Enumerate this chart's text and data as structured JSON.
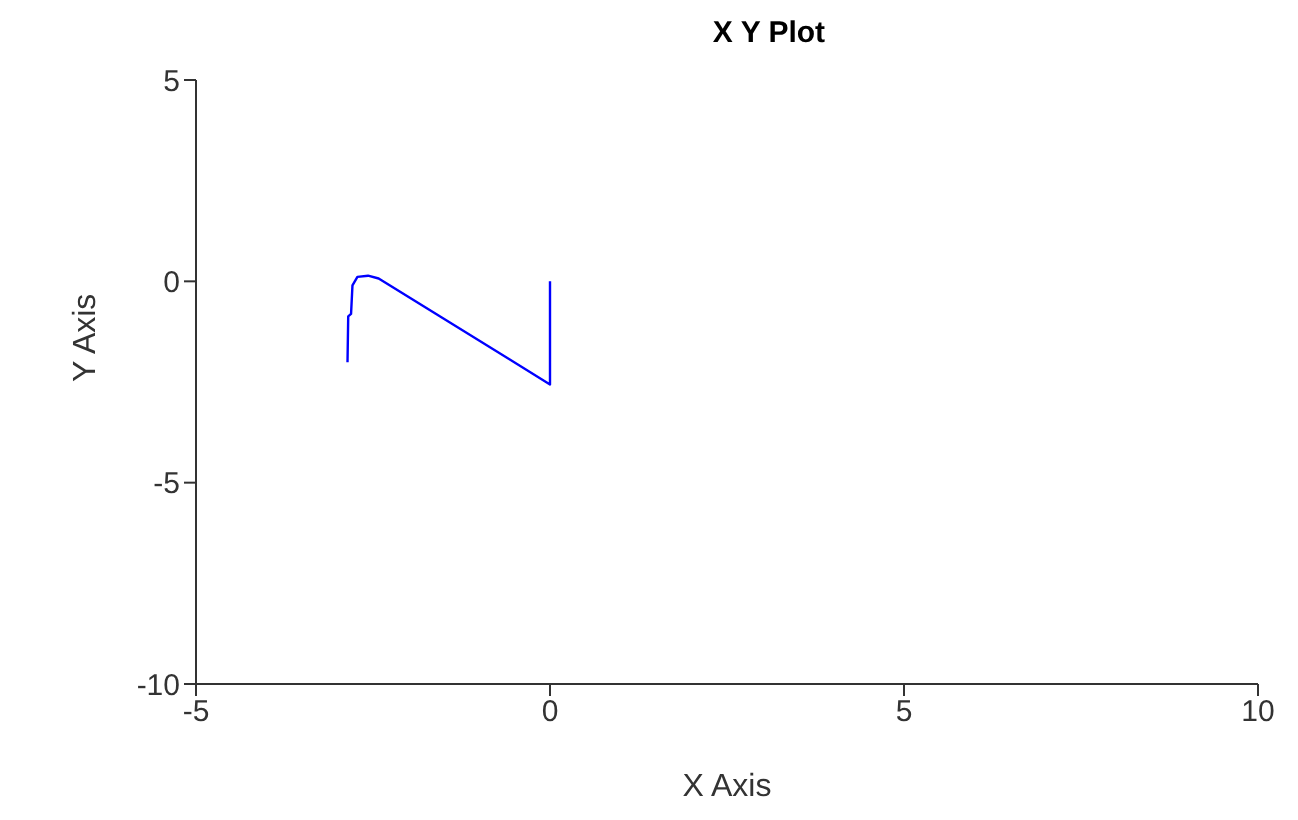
{
  "chart_data": {
    "type": "line",
    "title": "X Y Plot",
    "xlabel": "X Axis",
    "ylabel": "Y Axis",
    "xlim": [
      -5,
      10
    ],
    "ylim": [
      -10,
      5
    ],
    "xticks": [
      -5,
      0,
      5,
      10
    ],
    "yticks": [
      -10,
      -5,
      0,
      5
    ],
    "grid": false,
    "legend": false,
    "marker": "none",
    "series": [
      {
        "color": "#0000ff",
        "x": [
          -2.86,
          -2.85,
          -2.81,
          -2.79,
          -2.72,
          -2.57,
          -2.42,
          0,
          0
        ],
        "values": [
          -2.01,
          -0.87,
          -0.81,
          -0.1,
          0.11,
          0.14,
          0.07,
          -2.56,
          0
        ]
      }
    ]
  }
}
